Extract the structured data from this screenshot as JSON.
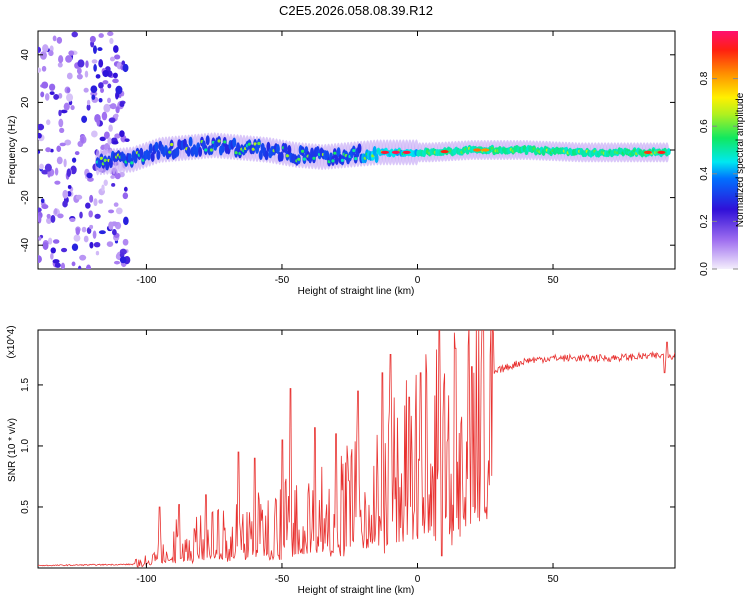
{
  "chart_data": [
    {
      "type": "heatmap",
      "title": "C2E5.2026.058.08.39.R12",
      "xlabel": "Height of straight line (km)",
      "ylabel": "Frequency (Hz)",
      "xlim": [
        -140,
        95
      ],
      "ylim": [
        -50,
        50
      ],
      "xticks": [
        -100,
        -50,
        0,
        50
      ],
      "yticks": [
        -40,
        -20,
        0,
        20,
        40
      ],
      "colorbar": {
        "label": "Normalized spectral amplitude",
        "range": [
          0,
          1
        ],
        "ticks": [
          "0.0",
          "0.2",
          "0.4",
          "0.6",
          "0.8"
        ]
      },
      "ridge": {
        "x": [
          -130,
          -115,
          -105,
          -95,
          -85,
          -75,
          -65,
          -55,
          -45,
          -35,
          -25,
          -15,
          -5,
          5,
          20,
          40,
          60,
          80,
          93
        ],
        "y": [
          -6,
          -5,
          -4,
          0,
          1,
          2,
          1,
          0,
          -2,
          -3,
          -2,
          -1,
          -1,
          -1,
          0,
          0,
          -1,
          -1,
          -1
        ]
      }
    },
    {
      "type": "line",
      "xlabel": "Height of straight line (km)",
      "ylabel": "SNR (10 * v/v)",
      "y_multiplier": "(x10^4)",
      "xlim": [
        -140,
        95
      ],
      "ylim": [
        0,
        1.95
      ],
      "xticks": [
        -100,
        -50,
        0,
        50
      ],
      "yticks": [
        0.5,
        1.0,
        1.5
      ],
      "ytick_labels": [
        "0.5",
        "1.0",
        "1.5"
      ],
      "color": "#e8312f",
      "envelope_x": [
        -140,
        -105,
        -100,
        -90,
        -80,
        -70,
        -60,
        -50,
        -40,
        -30,
        -20,
        -10,
        0,
        10,
        15,
        20,
        30,
        40,
        50,
        60,
        70,
        80,
        90,
        95
      ],
      "envelope_y": [
        0.02,
        0.03,
        0.08,
        0.22,
        0.25,
        0.3,
        0.35,
        0.42,
        0.48,
        0.55,
        0.62,
        0.78,
        0.95,
        1.05,
        1.2,
        1.45,
        1.62,
        1.7,
        1.72,
        1.72,
        1.72,
        1.73,
        1.74,
        1.74
      ],
      "spikes": [
        [
          -95,
          0.5
        ],
        [
          -88,
          0.52
        ],
        [
          -78,
          0.6
        ],
        [
          -66,
          0.95
        ],
        [
          -60,
          0.9
        ],
        [
          -50,
          1.05
        ],
        [
          -47,
          1.47
        ],
        [
          -38,
          1.15
        ],
        [
          -30,
          1.1
        ],
        [
          -22,
          1.45
        ],
        [
          -13,
          1.6
        ],
        [
          -10,
          1.75
        ],
        [
          -3,
          1.4
        ],
        [
          1,
          1.6
        ],
        [
          8,
          1.95
        ],
        [
          9,
          0.1
        ],
        [
          14,
          1.8
        ],
        [
          20,
          1.65
        ],
        [
          92,
          1.85
        ],
        [
          91,
          1.6
        ]
      ]
    }
  ]
}
